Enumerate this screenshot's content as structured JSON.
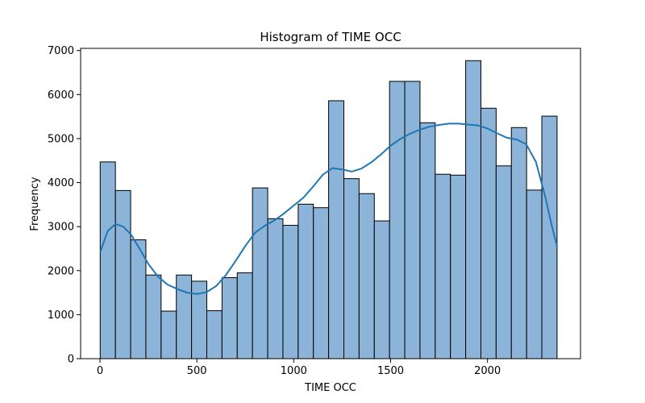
{
  "chart_data": {
    "type": "bar",
    "title": "Histogram of TIME OCC",
    "xlabel": "TIME OCC",
    "ylabel": "Frequency",
    "xlim": [
      -100,
      2480
    ],
    "ylim": [
      0,
      7050
    ],
    "xticks": [
      0,
      500,
      1000,
      1500,
      2000
    ],
    "yticks": [
      0,
      1000,
      2000,
      3000,
      4000,
      5000,
      6000,
      7000
    ],
    "bin_start": 1,
    "bin_width": 78.6,
    "values": [
      4470,
      3820,
      2700,
      1900,
      1080,
      1900,
      1760,
      1090,
      1840,
      1950,
      3880,
      3180,
      3030,
      3510,
      3430,
      5860,
      4090,
      3750,
      3130,
      6300,
      6300,
      5360,
      4190,
      4170,
      6770,
      5690,
      4380,
      5250,
      3830,
      5510
    ],
    "kde": {
      "x": [
        1,
        40,
        80,
        120,
        160,
        200,
        250,
        300,
        350,
        400,
        450,
        500,
        550,
        600,
        650,
        700,
        750,
        800,
        850,
        900,
        950,
        1000,
        1050,
        1100,
        1150,
        1200,
        1250,
        1300,
        1350,
        1400,
        1450,
        1500,
        1550,
        1600,
        1650,
        1700,
        1750,
        1800,
        1850,
        1900,
        1950,
        2000,
        2050,
        2100,
        2150,
        2200,
        2250,
        2300,
        2330,
        2360
      ],
      "y": [
        2420,
        2900,
        3060,
        3000,
        2820,
        2530,
        2150,
        1860,
        1680,
        1580,
        1500,
        1470,
        1510,
        1650,
        1900,
        2220,
        2560,
        2860,
        3020,
        3140,
        3300,
        3480,
        3660,
        3910,
        4180,
        4330,
        4300,
        4250,
        4320,
        4460,
        4640,
        4840,
        4990,
        5110,
        5200,
        5270,
        5310,
        5340,
        5340,
        5320,
        5300,
        5230,
        5120,
        5020,
        4980,
        4870,
        4470,
        3650,
        3050,
        2530
      ]
    },
    "bar_color": "#8cb4d8",
    "bar_edge_color": "#000000",
    "line_color": "#1f77b4",
    "grid": false,
    "legend": "none"
  }
}
